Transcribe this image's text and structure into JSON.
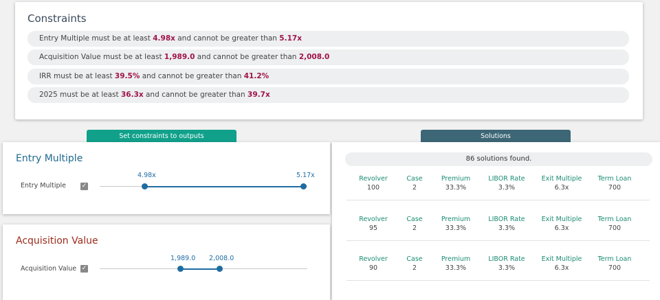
{
  "constraints": {
    "title": "Constraints",
    "rows": [
      {
        "name": "Entry Multiple",
        "prefix": "Entry Multiple must be at least ",
        "min": "4.98x",
        "mid": " and cannot be greater than ",
        "max": "5.17x"
      },
      {
        "name": "Acquisition Value",
        "prefix": "Acquisition Value must be at least ",
        "min": "1,989.0",
        "mid": " and cannot be greater than ",
        "max": "2,008.0"
      },
      {
        "name": "IRR",
        "prefix": "IRR must be at least ",
        "min": "39.5%",
        "mid": " and cannot be greater than ",
        "max": "41.2%"
      },
      {
        "name": "2025",
        "prefix": "2025 must be at least ",
        "min": "36.3x",
        "mid": " and cannot be greater than ",
        "max": "39.7x"
      }
    ]
  },
  "tabs": {
    "constraints_label": "Set constraints to outputs",
    "solutions_label": "Solutions"
  },
  "entry_multiple": {
    "title": "Entry Multiple",
    "label": "Entry Multiple",
    "checked": true,
    "low_label": "4.98x",
    "high_label": "5.17x"
  },
  "acquisition_value": {
    "title": "Acquisition Value",
    "label": "Acquisition Value",
    "checked": true,
    "low_label": "1,989.0",
    "high_label": "2,008.0"
  },
  "solutions": {
    "found_text": "86 solutions found.",
    "columns": [
      "Revolver",
      "Case",
      "Premium",
      "LIBOR Rate",
      "Exit Multiple",
      "Term Loan"
    ],
    "rows": [
      [
        "100",
        "2",
        "33.3%",
        "3.3%",
        "6.3x",
        "700"
      ],
      [
        "95",
        "2",
        "33.3%",
        "3.3%",
        "6.3x",
        "700"
      ],
      [
        "90",
        "2",
        "33.3%",
        "3.3%",
        "6.3x",
        "700"
      ]
    ]
  }
}
